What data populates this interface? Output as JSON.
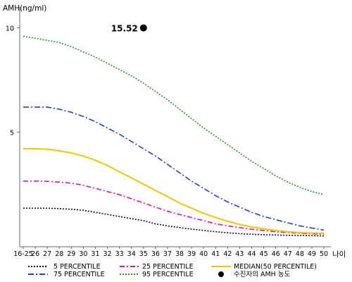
{
  "chart_data": {
    "type": "line",
    "ylabel": "AMH(ng/ml)",
    "xlabel": "나이",
    "y_ticks": [
      "10",
      "5"
    ],
    "y_tick_values": [
      10,
      5
    ],
    "ylim": [
      -0.5,
      11
    ],
    "categories": [
      "16-25",
      "26",
      "27",
      "28",
      "29",
      "30",
      "31",
      "32",
      "33",
      "34",
      "35",
      "36",
      "37",
      "38",
      "39",
      "40",
      "41",
      "42",
      "43",
      "44",
      "45",
      "46",
      "47",
      "48",
      "49",
      "50"
    ],
    "series": [
      {
        "name": "5 PERCENTILE",
        "color": "#0a0a2e",
        "dash": "2,2",
        "values": [
          1.35,
          1.35,
          1.35,
          1.33,
          1.3,
          1.25,
          1.15,
          1.05,
          0.95,
          0.85,
          0.75,
          0.6,
          0.5,
          0.42,
          0.35,
          0.28,
          0.22,
          0.17,
          0.13,
          0.1,
          0.08,
          0.06,
          0.05,
          0.04,
          0.03,
          0.02
        ]
      },
      {
        "name": "25 PERCENTILE",
        "color": "#e0179a",
        "dash": "7,3,2,3",
        "values": [
          2.65,
          2.65,
          2.64,
          2.6,
          2.55,
          2.45,
          2.3,
          2.15,
          2.0,
          1.8,
          1.6,
          1.4,
          1.2,
          1.05,
          0.9,
          0.75,
          0.6,
          0.5,
          0.42,
          0.34,
          0.28,
          0.22,
          0.18,
          0.15,
          0.12,
          0.1
        ]
      },
      {
        "name": "MEDIAN(50 PERCENTILE)",
        "color": "#f0c800",
        "dash": "",
        "values": [
          4.2,
          4.2,
          4.18,
          4.1,
          4.0,
          3.85,
          3.65,
          3.4,
          3.1,
          2.8,
          2.5,
          2.2,
          1.9,
          1.6,
          1.35,
          1.1,
          0.9,
          0.72,
          0.57,
          0.45,
          0.36,
          0.28,
          0.22,
          0.18,
          0.16,
          0.15
        ]
      },
      {
        "name": "75 PERCENTILE",
        "color": "#2a3fbf",
        "dash": "8,3,2,3",
        "values": [
          6.2,
          6.2,
          6.2,
          6.1,
          5.95,
          5.75,
          5.5,
          5.2,
          4.9,
          4.55,
          4.2,
          3.85,
          3.45,
          3.05,
          2.65,
          2.3,
          1.95,
          1.65,
          1.4,
          1.15,
          0.95,
          0.8,
          0.65,
          0.5,
          0.4,
          0.3
        ]
      },
      {
        "name": "95 PERCENTILE",
        "color": "#3a8a3a",
        "dash": "2,2",
        "values": [
          9.6,
          9.5,
          9.4,
          9.3,
          9.1,
          8.85,
          8.6,
          8.3,
          8.0,
          7.7,
          7.35,
          6.95,
          6.55,
          6.1,
          5.65,
          5.2,
          4.8,
          4.4,
          4.0,
          3.6,
          3.25,
          2.9,
          2.6,
          2.35,
          2.15,
          2.0
        ]
      }
    ],
    "patient": {
      "name": "수진자의 AMH 농도",
      "age": "35",
      "value": 15.52,
      "label": "15.52",
      "display_y": 10
    }
  }
}
